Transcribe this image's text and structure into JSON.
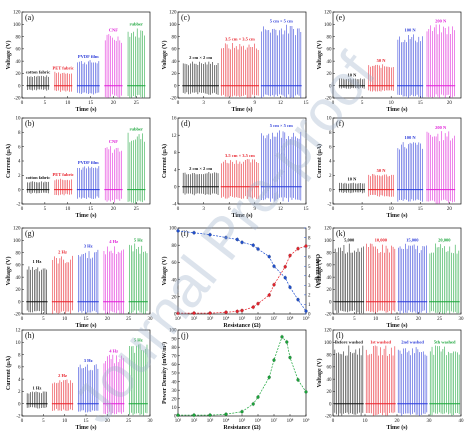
{
  "watermark": "Journal Pre-proof",
  "colors": {
    "black": "#111111",
    "red": "#e8202a",
    "blue": "#2b3bd9",
    "magenta": "#e020d8",
    "green": "#1aa53a",
    "mid_blue": "#1e4fd1"
  },
  "chart_data": [
    {
      "panel": "(a)",
      "type": "line",
      "xlabel": "Time (s)",
      "ylabel": "Voltage (V)",
      "xlim": [
        0,
        28
      ],
      "ylim": [
        -20,
        120
      ],
      "xticks": [
        "0",
        "5",
        "10",
        "15",
        "20",
        "25"
      ],
      "yticks": [
        "-20",
        "0",
        "20",
        "40",
        "60",
        "80",
        "100",
        "120"
      ],
      "segments": [
        {
          "label": "cotton fabric",
          "x": [
            1,
            6
          ],
          "amp_pos": 17,
          "amp_neg": -8,
          "color": "black"
        },
        {
          "label": "PET fabric",
          "x": [
            7,
            11
          ],
          "amp_pos": 23,
          "amp_neg": -10,
          "color": "red"
        },
        {
          "label": "PVDF film",
          "x": [
            12,
            17
          ],
          "amp_pos": 42,
          "amp_neg": -15,
          "color": "blue"
        },
        {
          "label": "CNF",
          "x": [
            18,
            22
          ],
          "amp_pos": 85,
          "amp_neg": -20,
          "color": "magenta"
        },
        {
          "label": "rubber",
          "x": [
            23,
            27
          ],
          "amp_pos": 95,
          "amp_neg": -20,
          "color": "green"
        }
      ]
    },
    {
      "panel": "(b)",
      "type": "line",
      "xlabel": "Time (s)",
      "ylabel": "Current (μA)",
      "xlim": [
        0,
        28
      ],
      "ylim": [
        -2,
        10
      ],
      "xticks": [
        "0",
        "5",
        "10",
        "15",
        "20",
        "25"
      ],
      "yticks": [
        "-2",
        "0",
        "2",
        "4",
        "6",
        "8",
        "10"
      ],
      "segments": [
        {
          "label": "cotton fabric",
          "x": [
            1,
            6
          ],
          "amp_pos": 1.2,
          "amp_neg": -0.6,
          "color": "black"
        },
        {
          "label": "PET fabric",
          "x": [
            7,
            11
          ],
          "amp_pos": 1.6,
          "amp_neg": -0.8,
          "color": "red"
        },
        {
          "label": "PVDF film",
          "x": [
            12,
            17
          ],
          "amp_pos": 3.3,
          "amp_neg": -1.3,
          "color": "blue"
        },
        {
          "label": "CNF",
          "x": [
            18,
            22
          ],
          "amp_pos": 6.2,
          "amp_neg": -1.8,
          "color": "magenta"
        },
        {
          "label": "rubber",
          "x": [
            23,
            27
          ],
          "amp_pos": 8.0,
          "amp_neg": -2.0,
          "color": "green"
        }
      ]
    },
    {
      "panel": "(c)",
      "type": "line",
      "xlabel": "Time (s)",
      "ylabel": "Voltage (V)",
      "xlim": [
        0,
        15
      ],
      "ylim": [
        -20,
        120
      ],
      "xticks": [
        "0",
        "3",
        "6",
        "9",
        "12",
        "15"
      ],
      "yticks": [
        "-20",
        "0",
        "20",
        "40",
        "60",
        "80",
        "100",
        "120"
      ],
      "segments": [
        {
          "label": "2 cm × 2 cm",
          "x": [
            0.5,
            4.8
          ],
          "amp_pos": 40,
          "amp_neg": -15,
          "color": "black"
        },
        {
          "label": "3.5 cm × 3.5 cm",
          "x": [
            5,
            9.5
          ],
          "amp_pos": 70,
          "amp_neg": -20,
          "color": "red"
        },
        {
          "label": "5 cm × 5 cm",
          "x": [
            9.7,
            14.5
          ],
          "amp_pos": 100,
          "amp_neg": -20,
          "color": "blue"
        }
      ]
    },
    {
      "panel": "(d)",
      "type": "line",
      "xlabel": "Time (s)",
      "ylabel": "Current (μA)",
      "xlim": [
        0,
        15
      ],
      "ylim": [
        -4,
        16
      ],
      "xticks": [
        "0",
        "3",
        "6",
        "9",
        "12",
        "15"
      ],
      "yticks": [
        "-4",
        "0",
        "4",
        "8",
        "12",
        "16"
      ],
      "segments": [
        {
          "label": "2 cm × 2 cm",
          "x": [
            0.5,
            4.8
          ],
          "amp_pos": 3.5,
          "amp_neg": -2,
          "color": "black"
        },
        {
          "label": "3.5 cm × 3.5 cm",
          "x": [
            5,
            9.5
          ],
          "amp_pos": 6.5,
          "amp_neg": -3,
          "color": "red"
        },
        {
          "label": "5 cm × 5 cm",
          "x": [
            9.7,
            14.5
          ],
          "amp_pos": 13.5,
          "amp_neg": -3.5,
          "color": "blue"
        }
      ]
    },
    {
      "panel": "(e)",
      "type": "line",
      "xlabel": "Time (s)",
      "ylabel": "Voltage (V)",
      "xlim": [
        0,
        22
      ],
      "ylim": [
        -20,
        120
      ],
      "xticks": [
        "0",
        "5",
        "10",
        "15",
        "20"
      ],
      "yticks": [
        "-20",
        "0",
        "20",
        "40",
        "60",
        "80",
        "100",
        "120"
      ],
      "segments": [
        {
          "label": "10 N",
          "x": [
            1,
            5.5
          ],
          "amp_pos": 12,
          "amp_neg": -5,
          "color": "black"
        },
        {
          "label": "50 N",
          "x": [
            6,
            10.5
          ],
          "amp_pos": 35,
          "amp_neg": -10,
          "color": "red"
        },
        {
          "label": "100 N",
          "x": [
            11,
            15.5
          ],
          "amp_pos": 85,
          "amp_neg": -20,
          "color": "blue"
        },
        {
          "label": "200 N",
          "x": [
            16,
            21
          ],
          "amp_pos": 100,
          "amp_neg": -20,
          "color": "magenta"
        }
      ]
    },
    {
      "panel": "(f)",
      "type": "line",
      "xlabel": "Time (s)",
      "ylabel": "Current (μA)",
      "xlim": [
        0,
        22
      ],
      "ylim": [
        -2,
        10
      ],
      "xticks": [
        "0",
        "5",
        "10",
        "15",
        "20"
      ],
      "yticks": [
        "-2",
        "0",
        "2",
        "4",
        "6",
        "8",
        "10"
      ],
      "segments": [
        {
          "label": "10 N",
          "x": [
            1,
            5.5
          ],
          "amp_pos": 1.0,
          "amp_neg": -0.5,
          "color": "black"
        },
        {
          "label": "50 N",
          "x": [
            6,
            10.5
          ],
          "amp_pos": 2.2,
          "amp_neg": -1.0,
          "color": "red"
        },
        {
          "label": "100 N",
          "x": [
            11,
            15.5
          ],
          "amp_pos": 6.8,
          "amp_neg": -1.8,
          "color": "blue"
        },
        {
          "label": "200 N",
          "x": [
            16,
            21
          ],
          "amp_pos": 8.2,
          "amp_neg": -2.0,
          "color": "magenta"
        }
      ]
    },
    {
      "panel": "(g)",
      "type": "line",
      "xlabel": "Time (s)",
      "ylabel": "Voltage (V)",
      "xlim": [
        0,
        30
      ],
      "ylim": [
        -20,
        120
      ],
      "xticks": [
        "0",
        "5",
        "10",
        "15",
        "20",
        "25",
        "30"
      ],
      "yticks": [
        "-20",
        "0",
        "20",
        "40",
        "60",
        "80",
        "100",
        "120"
      ],
      "segments": [
        {
          "label": "1 Hz",
          "x": [
            1,
            6
          ],
          "amp_pos": 60,
          "amp_neg": -20,
          "color": "black"
        },
        {
          "label": "2 Hz",
          "x": [
            7,
            12
          ],
          "amp_pos": 75,
          "amp_neg": -20,
          "color": "red"
        },
        {
          "label": "3 Hz",
          "x": [
            13,
            18
          ],
          "amp_pos": 85,
          "amp_neg": -20,
          "color": "blue"
        },
        {
          "label": "4 Hz",
          "x": [
            19,
            24
          ],
          "amp_pos": 92,
          "amp_neg": -20,
          "color": "magenta"
        },
        {
          "label": "5 Hz",
          "x": [
            25,
            29.5
          ],
          "amp_pos": 95,
          "amp_neg": -20,
          "color": "green"
        }
      ]
    },
    {
      "panel": "(h)",
      "type": "line",
      "xlabel": "Time (s)",
      "ylabel": "Current (μA)",
      "xlim": [
        0,
        30
      ],
      "ylim": [
        -2,
        12
      ],
      "xticks": [
        "0",
        "5",
        "10",
        "15",
        "20",
        "25",
        "30"
      ],
      "yticks": [
        "-2",
        "0",
        "2",
        "4",
        "6",
        "8",
        "10",
        "12"
      ],
      "segments": [
        {
          "label": "1 Hz",
          "x": [
            1,
            6
          ],
          "amp_pos": 2.0,
          "amp_neg": -0.8,
          "color": "black"
        },
        {
          "label": "2 Hz",
          "x": [
            7,
            12
          ],
          "amp_pos": 4.0,
          "amp_neg": -1.2,
          "color": "red"
        },
        {
          "label": "3 Hz",
          "x": [
            13,
            18
          ],
          "amp_pos": 6.5,
          "amp_neg": -1.5,
          "color": "blue"
        },
        {
          "label": "4 Hz",
          "x": [
            19,
            24
          ],
          "amp_pos": 8.0,
          "amp_neg": -1.8,
          "color": "magenta"
        },
        {
          "label": "5 Hz",
          "x": [
            25,
            29.5
          ],
          "amp_pos": 9.8,
          "amp_neg": -2.0,
          "color": "green"
        }
      ]
    },
    {
      "panel": "(i)",
      "type": "scatter",
      "xlabel": "Resistance (Ω)",
      "ylabel": "Voltage (V)",
      "ylabel2": "Current (μA)",
      "x_scale": "log",
      "xlim": [
        1,
        9
      ],
      "ylim": [
        0,
        100
      ],
      "ylim2": [
        0,
        9
      ],
      "xticks": [
        "10¹",
        "10²",
        "10³",
        "10⁴",
        "10⁵",
        "10⁶",
        "10⁷",
        "10⁸",
        "10⁹"
      ],
      "yticks": [
        "0",
        "20",
        "40",
        "60",
        "80",
        "100"
      ],
      "yticks2": [
        "0",
        "1",
        "2",
        "3",
        "4",
        "5",
        "6",
        "7",
        "8",
        "9"
      ],
      "series": [
        {
          "name": "Voltage",
          "axis": "left",
          "color": "red",
          "x": [
            1,
            2,
            3,
            4,
            4.7,
            5,
            5.7,
            6,
            6.7,
            7,
            7.7,
            8,
            8.5,
            9
          ],
          "y": [
            1,
            1,
            1,
            2,
            3,
            4,
            8,
            12,
            22,
            34,
            55,
            68,
            76,
            79
          ]
        },
        {
          "name": "Current",
          "axis": "right",
          "color": "mid_blue",
          "x": [
            1,
            2,
            3,
            4,
            4.7,
            5,
            5.7,
            6,
            6.7,
            7,
            7.7,
            8,
            8.5,
            9
          ],
          "y": [
            8.7,
            8.5,
            8.3,
            8.0,
            7.8,
            7.5,
            7.2,
            6.8,
            6.0,
            5.0,
            3.8,
            2.8,
            1.5,
            0.3
          ]
        }
      ]
    },
    {
      "panel": "(j)",
      "type": "line",
      "xlabel": "Resistance (Ω)",
      "ylabel": "Power Density (mW/m²)",
      "x_scale": "log",
      "xlim": [
        1,
        9
      ],
      "ylim": [
        0,
        100
      ],
      "xticks": [
        "10¹",
        "10²",
        "10³",
        "10⁴",
        "10⁵",
        "10⁶",
        "10⁷",
        "10⁸",
        "10⁹"
      ],
      "yticks": [
        "0",
        "10",
        "20",
        "30",
        "40",
        "50",
        "60",
        "70",
        "80",
        "90",
        "100"
      ],
      "series": [
        {
          "color": "green",
          "x": [
            1,
            2,
            3,
            4,
            5,
            5.7,
            6,
            6.7,
            7,
            7.5,
            7.8,
            8,
            8.5,
            9
          ],
          "y": [
            1,
            1,
            1,
            2,
            5,
            14,
            22,
            45,
            65,
            92,
            86,
            68,
            42,
            28
          ]
        }
      ]
    },
    {
      "panel": "(k)",
      "type": "line",
      "xlabel": "Time (s)",
      "ylabel": "Voltage (V)",
      "xlim": [
        0,
        30
      ],
      "ylim": [
        -20,
        120
      ],
      "xticks": [
        "0",
        "5",
        "10",
        "15",
        "20",
        "25",
        "30"
      ],
      "yticks": [
        "-20",
        "0",
        "20",
        "40",
        "60",
        "80",
        "100",
        "120"
      ],
      "segments": [
        {
          "label": "5,000",
          "x": [
            0.3,
            7.3
          ],
          "amp_pos": 95,
          "amp_neg": -20,
          "color": "black"
        },
        {
          "label": "10,000",
          "x": [
            7.7,
            14.7
          ],
          "amp_pos": 95,
          "amp_neg": -20,
          "color": "red"
        },
        {
          "label": "15,000",
          "x": [
            15.1,
            22.1
          ],
          "amp_pos": 95,
          "amp_neg": -20,
          "color": "blue"
        },
        {
          "label": "20,000",
          "x": [
            22.5,
            29.7
          ],
          "amp_pos": 95,
          "amp_neg": -20,
          "color": "green"
        }
      ]
    },
    {
      "panel": "(l)",
      "type": "line",
      "xlabel": "Time (s)",
      "ylabel": "Voltage (V)",
      "xlim": [
        0,
        40
      ],
      "ylim": [
        -20,
        120
      ],
      "xticks": [
        "0",
        "10",
        "20",
        "30",
        "40"
      ],
      "yticks": [
        "-20",
        "0",
        "20",
        "40",
        "60",
        "80",
        "100",
        "120"
      ],
      "segments": [
        {
          "label": "Before washed",
          "x": [
            0.3,
            9.6
          ],
          "amp_pos": 95,
          "amp_neg": -20,
          "color": "black"
        },
        {
          "label": "1st washed",
          "x": [
            10.1,
            19.6
          ],
          "amp_pos": 95,
          "amp_neg": -20,
          "color": "red"
        },
        {
          "label": "2nd washed",
          "x": [
            20.1,
            29.6
          ],
          "amp_pos": 95,
          "amp_neg": -20,
          "color": "blue"
        },
        {
          "label": "5th washed",
          "x": [
            30.1,
            39.7
          ],
          "amp_pos": 95,
          "amp_neg": -20,
          "color": "green"
        }
      ]
    }
  ]
}
